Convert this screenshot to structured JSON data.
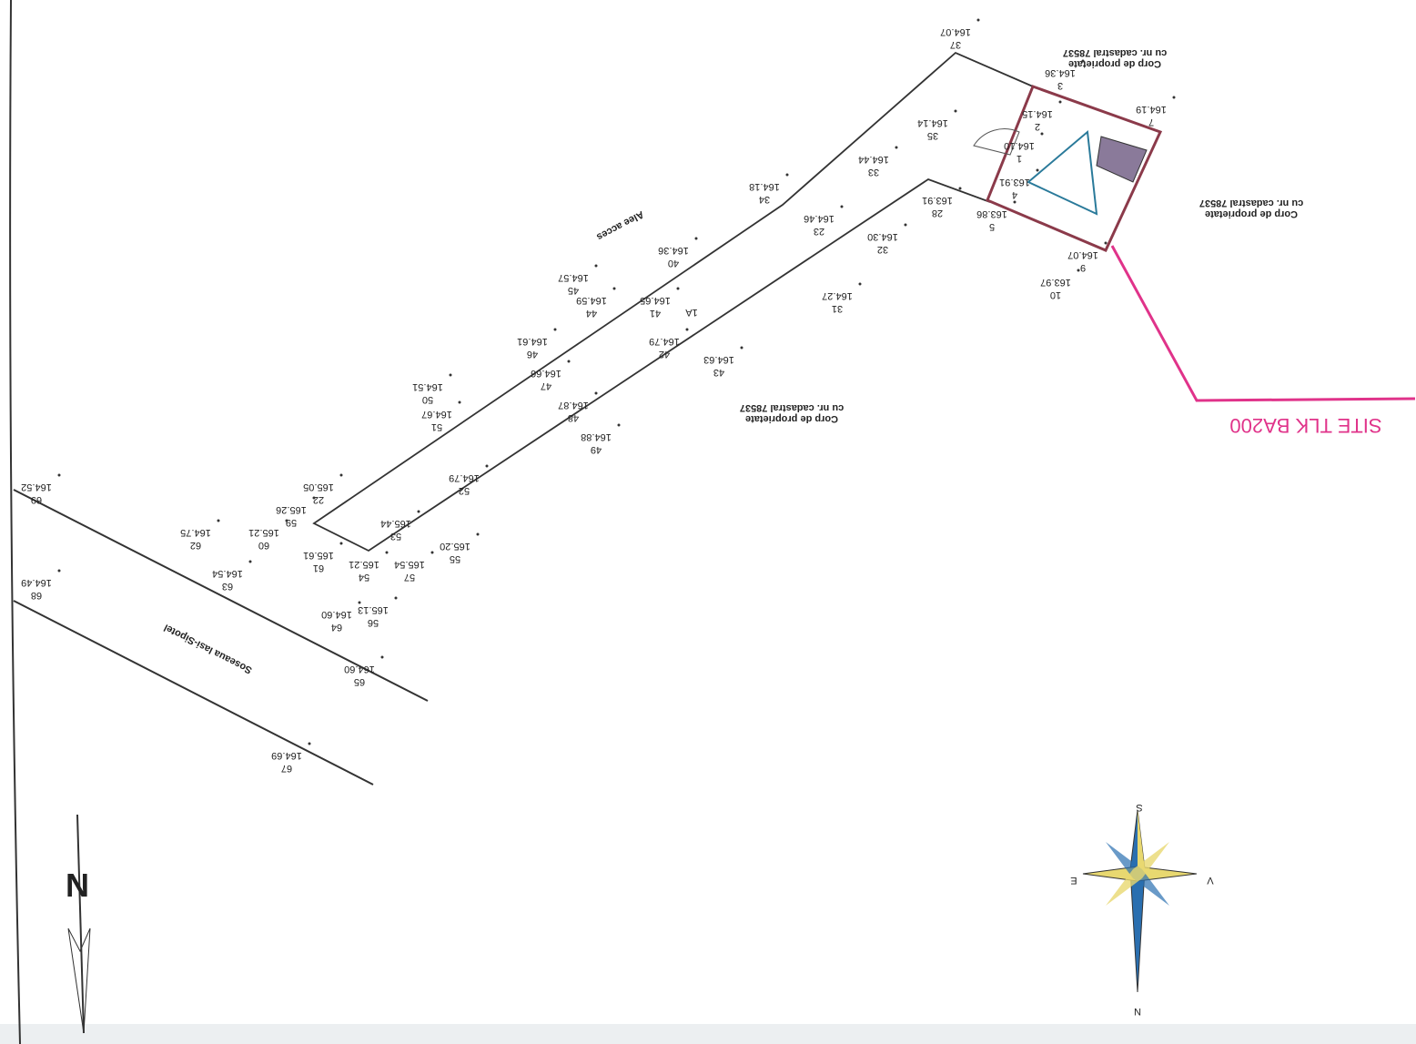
{
  "site_label": "SITE TLK BA200",
  "property_labels": [
    {
      "line1": "Corp de proprietate",
      "line2": "cu nr. cadastral 78537"
    },
    {
      "line1": "Corp de proprietate",
      "line2": "cu nr. cadastral 78537"
    },
    {
      "line1": "Corp de proprietate",
      "line2": "cu nr. cadastral 78537"
    }
  ],
  "alley_label": "Alee acces",
  "road_label": "Soseaua Iasi-Sipotel",
  "north_arrow": "N",
  "compass": {
    "north": "N",
    "south": "S",
    "east": "E",
    "west": "V"
  },
  "points": [
    {
      "id": "37",
      "elevation": "164.07"
    },
    {
      "id": "3",
      "elevation": "164.36"
    },
    {
      "id": "7",
      "elevation": "164.19"
    },
    {
      "id": "2",
      "elevation": "164.15"
    },
    {
      "id": "1",
      "elevation": "164.10"
    },
    {
      "id": "35",
      "elevation": "164.14"
    },
    {
      "id": "33",
      "elevation": "164.44"
    },
    {
      "id": "34",
      "elevation": "164.18"
    },
    {
      "id": "4",
      "elevation": "163.91"
    },
    {
      "id": "28",
      "elevation": "163.91"
    },
    {
      "id": "5",
      "elevation": "163.86"
    },
    {
      "id": "23",
      "elevation": "164.46"
    },
    {
      "id": "32",
      "elevation": "164.30"
    },
    {
      "id": "9",
      "elevation": "164.07"
    },
    {
      "id": "10",
      "elevation": "163.97"
    },
    {
      "id": "40",
      "elevation": "164.36"
    },
    {
      "id": "45",
      "elevation": "164.57"
    },
    {
      "id": "44",
      "elevation": "164.59"
    },
    {
      "id": "41",
      "elevation": "164.65"
    },
    {
      "id": "31",
      "elevation": "164.27"
    },
    {
      "id": "42",
      "elevation": "164.79"
    },
    {
      "id": "43",
      "elevation": "164.63"
    },
    {
      "id": "46",
      "elevation": "164.61"
    },
    {
      "id": "47",
      "elevation": "164.66"
    },
    {
      "id": "50",
      "elevation": "164.51"
    },
    {
      "id": "48",
      "elevation": "164.87"
    },
    {
      "id": "51",
      "elevation": "164.67"
    },
    {
      "id": "49",
      "elevation": "164.88"
    },
    {
      "id": "52",
      "elevation": "164.79"
    },
    {
      "id": "22",
      "elevation": "165.05"
    },
    {
      "id": "59",
      "elevation": "165.26"
    },
    {
      "id": "53",
      "elevation": "165.44"
    },
    {
      "id": "60",
      "elevation": "165.21"
    },
    {
      "id": "62",
      "elevation": "164.75"
    },
    {
      "id": "61",
      "elevation": "165.61"
    },
    {
      "id": "55",
      "elevation": "165.20"
    },
    {
      "id": "57",
      "elevation": "165.54"
    },
    {
      "id": "54",
      "elevation": "165.21"
    },
    {
      "id": "63",
      "elevation": "164.54"
    },
    {
      "id": "69",
      "elevation": "164.52"
    },
    {
      "id": "68",
      "elevation": "164.49"
    },
    {
      "id": "56",
      "elevation": "165.13"
    },
    {
      "id": "64",
      "elevation": "164.60"
    },
    {
      "id": "65",
      "elevation": "164.60"
    },
    {
      "id": "67",
      "elevation": "164.69"
    }
  ],
  "extra_label": "1A"
}
